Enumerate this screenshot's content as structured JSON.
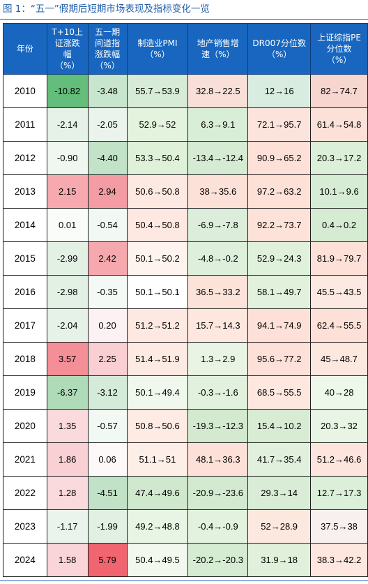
{
  "caption": "图 1：“五一”假期后短期市场表现及指标变化一览",
  "headers": [
    "年份",
    "T+10上\n证涨跌\n幅\n（%）",
    "五一期\n间道指\n涨跌幅\n（%）",
    "制造业PMI\n（%）",
    "地产销售增\n速（%）",
    "DR007分位数\n（%）",
    "上证综指PE\n分位数\n（%）"
  ],
  "rows": [
    {
      "year": "2010",
      "sh": "-10.82",
      "dow": "-3.48",
      "pmi": "55.7→53.9",
      "re": "32.8→22.5",
      "dr": "12→16",
      "pe": "82→74.7"
    },
    {
      "year": "2011",
      "sh": "-2.14",
      "dow": "-2.05",
      "pmi": "52.9→52",
      "re": "6.3→9.1",
      "dr": "72.1→95.7",
      "pe": "61.4→54.8"
    },
    {
      "year": "2012",
      "sh": "-0.90",
      "dow": "-4.40",
      "pmi": "53.3→50.4",
      "re": "-13.4→-12.4",
      "dr": "90.9→65.2",
      "pe": "20.3→17.2"
    },
    {
      "year": "2013",
      "sh": "2.15",
      "dow": "2.94",
      "pmi": "50.6→50.8",
      "re": "38→35.6",
      "dr": "97.2→63.2",
      "pe": "10.1→9.6"
    },
    {
      "year": "2014",
      "sh": "0.01",
      "dow": "-0.54",
      "pmi": "50.4→50.8",
      "re": "-6.9→-7.8",
      "dr": "92.2→73.7",
      "pe": "0.4→0.2"
    },
    {
      "year": "2015",
      "sh": "-2.99",
      "dow": "2.42",
      "pmi": "50.1→50.2",
      "re": "-4.8→-0.2",
      "dr": "52.9→24.3",
      "pe": "81.9→79.7"
    },
    {
      "year": "2016",
      "sh": "-2.98",
      "dow": "-0.35",
      "pmi": "50.1→50.1",
      "re": "36.5→33.2",
      "dr": "58.1→49.7",
      "pe": "45.5→43.5"
    },
    {
      "year": "2017",
      "sh": "-2.04",
      "dow": "0.20",
      "pmi": "51.2→51.2",
      "re": "15.7→14.3",
      "dr": "94.1→74.9",
      "pe": "62.4→55.5"
    },
    {
      "year": "2018",
      "sh": "3.57",
      "dow": "2.25",
      "pmi": "51.4→51.9",
      "re": "1.3→2.9",
      "dr": "95.6→77.2",
      "pe": "45→48.7"
    },
    {
      "year": "2019",
      "sh": "-6.37",
      "dow": "-3.12",
      "pmi": "50.1→49.4",
      "re": "-0.3→-1.6",
      "dr": "68.5→55.5",
      "pe": "40→28"
    },
    {
      "year": "2020",
      "sh": "1.35",
      "dow": "-0.57",
      "pmi": "50.8→50.6",
      "re": "-19.3→-12.3",
      "dr": "15.4→10.2",
      "pe": "20.3→32"
    },
    {
      "year": "2021",
      "sh": "1.86",
      "dow": "0.06",
      "pmi": "51.1→51",
      "re": "48.1→36.3",
      "dr": "41.7→35.4",
      "pe": "51.2→46.6"
    },
    {
      "year": "2022",
      "sh": "1.28",
      "dow": "-4.51",
      "pmi": "47.4→49.6",
      "re": "-20.9→-23.6",
      "dr": "29.3→14",
      "pe": "12.7→17.3"
    },
    {
      "year": "2023",
      "sh": "-1.17",
      "dow": "-1.99",
      "pmi": "49.2→48.8",
      "re": "-0.4→-0.9",
      "dr": "52→28.9",
      "pe": "37.5→38"
    },
    {
      "year": "2024",
      "sh": "1.58",
      "dow": "5.79",
      "pmi": "50.4→49.5",
      "re": "-20.2→-20.3",
      "dr": "31.9→18",
      "pe": "38.3→42.2"
    }
  ],
  "cell_colors": [
    [
      "#63be7b",
      "#c8e6cd",
      "#d6ecd7",
      "#f8e0d9",
      "#d8ede0",
      "#f8d6d0"
    ],
    [
      "#e6f2e8",
      "#eaf4ec",
      "#e4f3de",
      "#d9eed6",
      "#fce4dc",
      "#fbe1d8"
    ],
    [
      "#f0f7f1",
      "#c3e3c9",
      "#e0f1da",
      "#d5ebd3",
      "#fde1d8",
      "#dcefd8"
    ],
    [
      "#f6aab0",
      "#f39ca3",
      "#fde9e1",
      "#fce1d8",
      "#fde0d6",
      "#d6ecd4"
    ],
    [
      "#fafcfa",
      "#f2f8f3",
      "#fde9e1",
      "#dceedb",
      "#fde2d9",
      "#d5ebd2"
    ],
    [
      "#e3f1e5",
      "#f5a9af",
      "#fff3ef",
      "#def0dc",
      "#dff0db",
      "#fde1d8"
    ],
    [
      "#e3f1e5",
      "#f5f9f5",
      "#ffffff",
      "#fce3da",
      "#e1f1dc",
      "#fce9e2"
    ],
    [
      "#e6f2e8",
      "#fcf2f3",
      "#fde9e1",
      "#fde7df",
      "#fde0d7",
      "#fde1d8"
    ],
    [
      "#f48e97",
      "#f9cfd3",
      "#fdeae2",
      "#e9f4e5",
      "#fde0d7",
      "#fde8e0"
    ],
    [
      "#b0dbb9",
      "#d5ebd9",
      "#f0f8ee",
      "#e1f1dd",
      "#fde7df",
      "#eef8ea"
    ],
    [
      "#fadadd",
      "#f2f8f3",
      "#fdebe4",
      "#d3ead0",
      "#d8ecd4",
      "#e8f5e5"
    ],
    [
      "#f9d0d4",
      "#fdf9f9",
      "#fdeee7",
      "#fde0d7",
      "#e0f0dc",
      "#fde5dd"
    ],
    [
      "#fbdadd",
      "#c2e2c8",
      "#d0e9ce",
      "#d3ead0",
      "#d9edd6",
      "#dcefd8"
    ],
    [
      "#eaf4ec",
      "#e1f0e3",
      "#e8f5e5",
      "#e3f2de",
      "#fde8e0",
      "#f8f0ee"
    ],
    [
      "#f9d4d8",
      "#f0656f",
      "#f2f8ee",
      "#d5ebd2",
      "#e0f0db",
      "#fde7df"
    ]
  ]
}
